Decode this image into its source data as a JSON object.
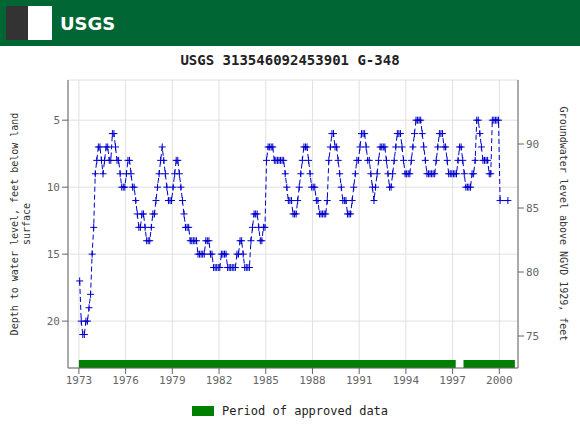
{
  "chart_data": {
    "type": "line",
    "title": "USGS 313546092453901 G-348",
    "annotations": [
      "USGS"
    ],
    "ylabel": "Depth to water level, feet below land\nsurface",
    "y2label": "Groundwater level above NGVD 1929, feet",
    "xlim": [
      1972.3,
      2001.2
    ],
    "xticks": [
      1973,
      1976,
      1979,
      1982,
      1985,
      1988,
      1991,
      1994,
      1997,
      2000
    ],
    "ylim": [
      23.5,
      2.0
    ],
    "yticks": [
      5,
      10,
      15,
      20
    ],
    "y2lim": [
      72.5,
      95.0
    ],
    "y2ticks": [
      75,
      80,
      85,
      90
    ],
    "grid": true,
    "legend": "bottom",
    "color": "#0000cc",
    "marker": "plus",
    "line_style": "dashed",
    "approved_periods": {
      "name": "Period of approved data",
      "color": "#008000",
      "periods": [
        [
          1973.0,
          1997.2
        ],
        [
          1997.7,
          2001.0
        ]
      ]
    },
    "x": [
      1973.05,
      1973.15,
      1973.25,
      1973.35,
      1973.45,
      1973.55,
      1973.65,
      1973.75,
      1973.85,
      1973.95,
      1974.05,
      1974.15,
      1974.25,
      1974.35,
      1974.45,
      1974.55,
      1974.65,
      1974.75,
      1974.85,
      1974.95,
      1975.05,
      1975.15,
      1975.25,
      1975.35,
      1975.45,
      1975.55,
      1975.65,
      1975.75,
      1975.85,
      1975.95,
      1976.05,
      1976.15,
      1976.25,
      1976.35,
      1976.45,
      1976.55,
      1976.65,
      1976.75,
      1976.85,
      1976.95,
      1977.05,
      1977.15,
      1977.25,
      1977.35,
      1977.45,
      1977.55,
      1977.65,
      1977.75,
      1977.85,
      1977.95,
      1978.05,
      1978.15,
      1978.25,
      1978.35,
      1978.45,
      1978.55,
      1978.65,
      1978.75,
      1978.85,
      1978.95,
      1979.05,
      1979.15,
      1979.25,
      1979.35,
      1979.45,
      1979.55,
      1979.65,
      1979.75,
      1979.85,
      1979.95,
      1980.05,
      1980.15,
      1980.25,
      1980.35,
      1980.45,
      1980.55,
      1980.65,
      1980.75,
      1980.85,
      1980.95,
      1981.05,
      1981.15,
      1981.25,
      1981.35,
      1981.45,
      1981.55,
      1981.65,
      1981.75,
      1981.85,
      1981.95,
      1982.05,
      1982.15,
      1982.25,
      1982.35,
      1982.45,
      1982.55,
      1982.65,
      1982.75,
      1982.85,
      1982.95,
      1983.05,
      1983.15,
      1983.25,
      1983.35,
      1983.45,
      1983.55,
      1983.65,
      1983.75,
      1983.85,
      1983.95,
      1984.05,
      1984.15,
      1984.25,
      1984.35,
      1984.45,
      1984.55,
      1984.65,
      1984.75,
      1984.85,
      1984.95,
      1985.05,
      1985.15,
      1985.25,
      1985.35,
      1985.45,
      1985.55,
      1985.65,
      1985.75,
      1985.85,
      1985.95,
      1986.05,
      1986.15,
      1986.25,
      1986.35,
      1986.45,
      1986.55,
      1986.65,
      1986.75,
      1986.85,
      1986.95,
      1987.05,
      1987.15,
      1987.25,
      1987.35,
      1987.45,
      1987.55,
      1987.65,
      1987.75,
      1987.85,
      1987.95,
      1988.05,
      1988.15,
      1988.25,
      1988.35,
      1988.45,
      1988.55,
      1988.65,
      1988.75,
      1988.85,
      1988.95,
      1989.05,
      1989.15,
      1989.25,
      1989.35,
      1989.45,
      1989.55,
      1989.65,
      1989.75,
      1989.85,
      1989.95,
      1990.05,
      1990.15,
      1990.25,
      1990.35,
      1990.45,
      1990.55,
      1990.65,
      1990.75,
      1990.85,
      1990.95,
      1991.05,
      1991.15,
      1991.25,
      1991.35,
      1991.45,
      1991.55,
      1991.65,
      1991.75,
      1991.85,
      1991.95,
      1992.05,
      1992.15,
      1992.25,
      1992.35,
      1992.45,
      1992.55,
      1992.65,
      1992.75,
      1992.85,
      1992.95,
      1993.05,
      1993.15,
      1993.25,
      1993.35,
      1993.45,
      1993.55,
      1993.65,
      1993.75,
      1993.85,
      1993.95,
      1994.05,
      1994.15,
      1994.25,
      1994.35,
      1994.45,
      1994.55,
      1994.65,
      1994.75,
      1994.85,
      1994.95,
      1995.05,
      1995.15,
      1995.25,
      1995.35,
      1995.45,
      1995.55,
      1995.65,
      1995.75,
      1995.85,
      1995.95,
      1996.05,
      1996.15,
      1996.25,
      1996.35,
      1996.45,
      1996.55,
      1996.65,
      1996.75,
      1996.85,
      1996.95,
      1997.05,
      1997.15,
      1997.25,
      1997.35,
      1997.45,
      1997.55,
      1997.65,
      1997.75,
      1997.85,
      1997.95,
      1998.05,
      1998.15,
      1998.25,
      1998.35,
      1998.45,
      1998.55,
      1998.65,
      1998.75,
      1998.85,
      1998.95,
      1999.05,
      1999.15,
      1999.25,
      1999.35,
      1999.45,
      1999.55,
      1999.65,
      1999.75,
      1999.85,
      1999.95,
      2000.05,
      2000.55
    ],
    "values": [
      17,
      20,
      21,
      21,
      20,
      20,
      19,
      18,
      15,
      13,
      9,
      8,
      7,
      7,
      8,
      9,
      8,
      7,
      7,
      8,
      8,
      6,
      6,
      7,
      8,
      8,
      9,
      10,
      10,
      10,
      9,
      8,
      8,
      9,
      10,
      10,
      11,
      12,
      13,
      13,
      12,
      12,
      13,
      14,
      14,
      14,
      13,
      12,
      12,
      11,
      10,
      9,
      8,
      7,
      8,
      9,
      10,
      11,
      11,
      11,
      10,
      9,
      8,
      8,
      9,
      10,
      11,
      12,
      13,
      13,
      13,
      14,
      14,
      14,
      14,
      14,
      15,
      15,
      15,
      15,
      15,
      14,
      14,
      14,
      15,
      15,
      16,
      16,
      16,
      16,
      16,
      15,
      15,
      15,
      15,
      16,
      16,
      16,
      16,
      16,
      16,
      15,
      15,
      14,
      14,
      15,
      16,
      16,
      16,
      16,
      14,
      13,
      12,
      12,
      12,
      13,
      14,
      14,
      13,
      13,
      8,
      7,
      7,
      7,
      7,
      8,
      8,
      8,
      8,
      8,
      8,
      8,
      9,
      10,
      11,
      11,
      11,
      12,
      12,
      12,
      11,
      10,
      9,
      8,
      7,
      7,
      7,
      8,
      9,
      10,
      10,
      10,
      11,
      11,
      12,
      12,
      12,
      12,
      12,
      11,
      8,
      7,
      6,
      6,
      7,
      7,
      8,
      9,
      10,
      11,
      11,
      11,
      12,
      12,
      12,
      11,
      10,
      9,
      8,
      8,
      7,
      6,
      6,
      6,
      7,
      8,
      8,
      9,
      10,
      11,
      10,
      9,
      8,
      7,
      7,
      7,
      7,
      8,
      9,
      10,
      10,
      9,
      8,
      7,
      6,
      6,
      6,
      7,
      8,
      9,
      9,
      9,
      9,
      8,
      7,
      6,
      5,
      5,
      5,
      5,
      6,
      7,
      8,
      9,
      9,
      9,
      9,
      9,
      9,
      8,
      7,
      6,
      6,
      6,
      7,
      7,
      8,
      9,
      9,
      9,
      9,
      9,
      9,
      8,
      7,
      7,
      8,
      9,
      10,
      10,
      10,
      10,
      9,
      9,
      8,
      5,
      5,
      6,
      7,
      8,
      8,
      8,
      8,
      9,
      9,
      5,
      5,
      5,
      5,
      5,
      11,
      11
    ]
  }
}
